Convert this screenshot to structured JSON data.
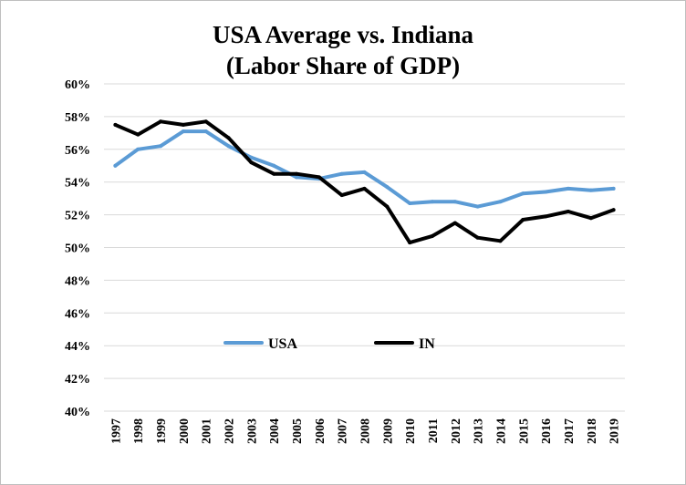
{
  "chart_data": {
    "type": "line",
    "title_lines": [
      "USA Average vs. Indiana",
      "(Labor Share of GDP)"
    ],
    "xlabel": "",
    "ylabel": "",
    "categories": [
      "1997",
      "1998",
      "1999",
      "2000",
      "2001",
      "2002",
      "2003",
      "2004",
      "2005",
      "2006",
      "2007",
      "2008",
      "2009",
      "2010",
      "2011",
      "2012",
      "2013",
      "2014",
      "2015",
      "2016",
      "2017",
      "2018",
      "2019"
    ],
    "ylim": [
      40,
      60
    ],
    "yticks": [
      40,
      42,
      44,
      46,
      48,
      50,
      52,
      54,
      56,
      58,
      60
    ],
    "ytick_labels": [
      "40%",
      "42%",
      "44%",
      "46%",
      "48%",
      "50%",
      "52%",
      "54%",
      "56%",
      "58%",
      "60%"
    ],
    "grid": true,
    "legend_position": "inside-lower-center",
    "series": [
      {
        "name": "USA",
        "color": "#5b9bd5",
        "values": [
          55.0,
          56.0,
          56.2,
          57.1,
          57.1,
          56.2,
          55.5,
          55.0,
          54.3,
          54.2,
          54.5,
          54.6,
          53.7,
          52.7,
          52.8,
          52.8,
          52.5,
          52.8,
          53.3,
          53.4,
          53.6,
          53.5,
          53.6
        ]
      },
      {
        "name": "IN",
        "color": "#000000",
        "values": [
          57.5,
          56.9,
          57.7,
          57.5,
          57.7,
          56.7,
          55.2,
          54.5,
          54.5,
          54.3,
          53.2,
          53.6,
          52.5,
          50.3,
          50.7,
          51.5,
          50.6,
          50.4,
          51.7,
          51.9,
          52.2,
          51.8,
          52.3
        ]
      }
    ]
  }
}
